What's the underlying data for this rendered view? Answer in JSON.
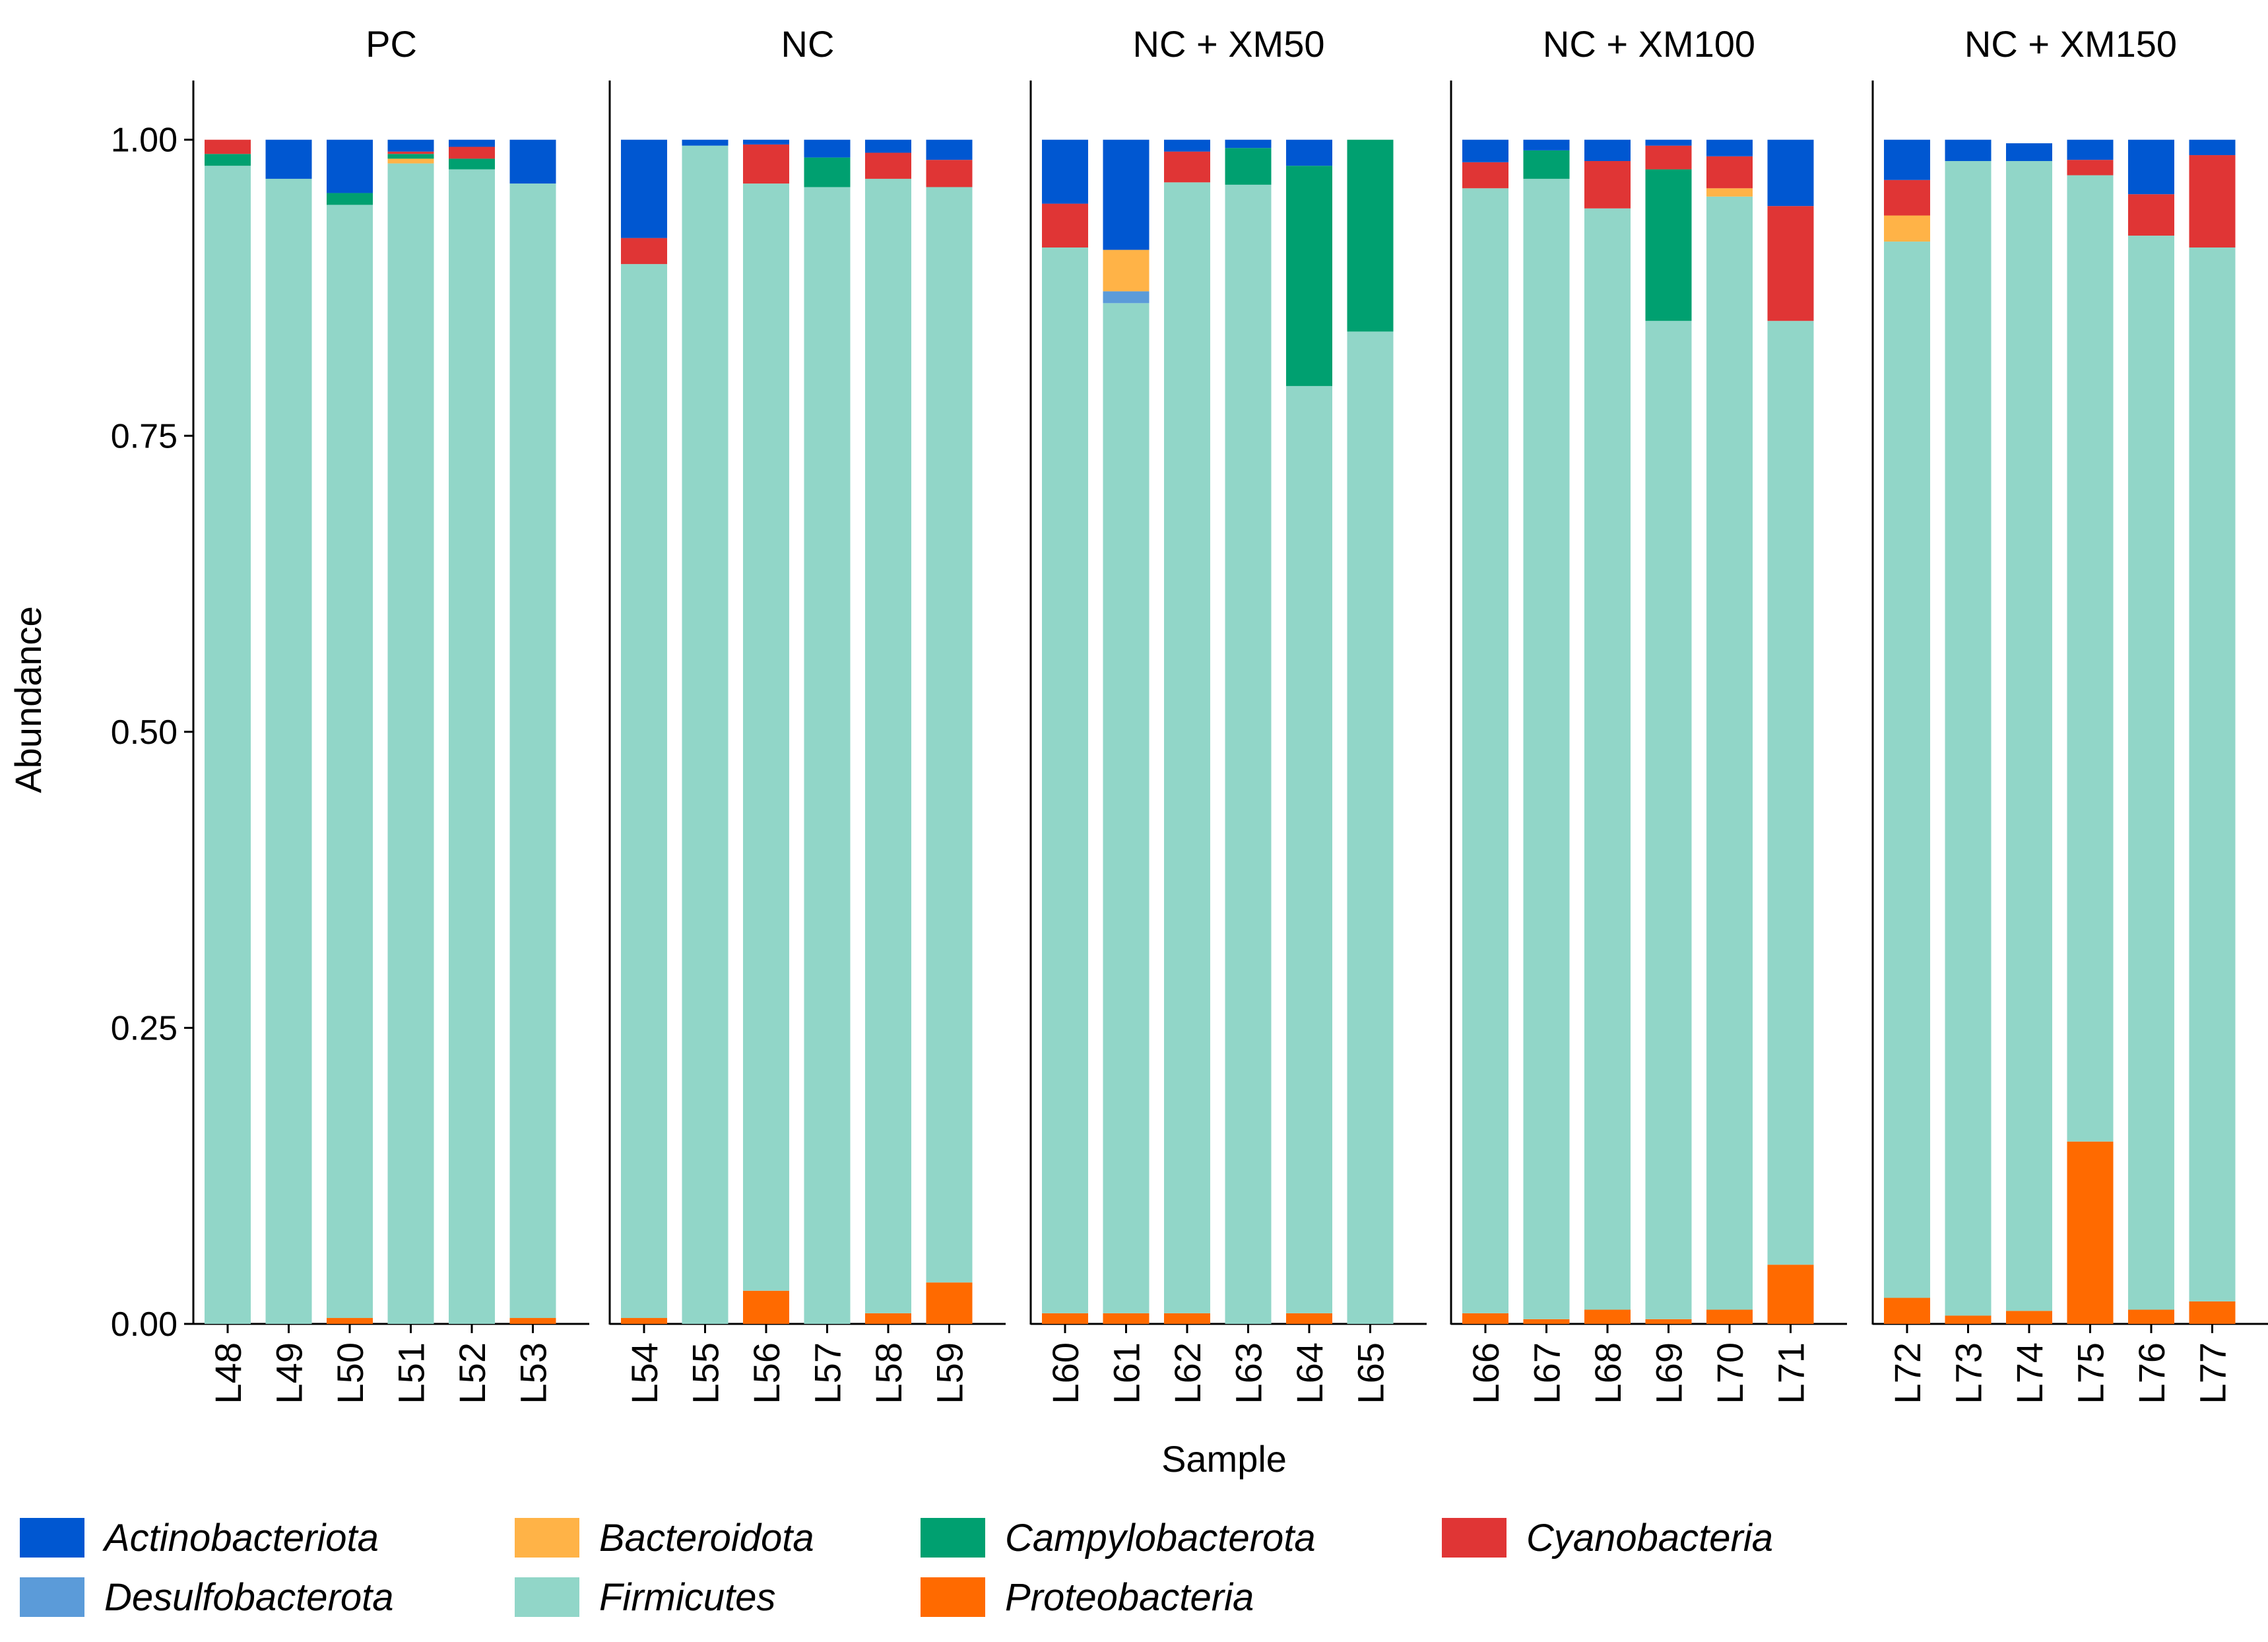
{
  "chart_data": {
    "type": "bar",
    "stacked": true,
    "ylabel": "Abundance",
    "xlabel": "Sample",
    "ylim": [
      0,
      1.05
    ],
    "yticks": [
      "0.00",
      "0.25",
      "0.50",
      "0.75",
      "1.00"
    ],
    "stack_order": [
      "Proteobacteria",
      "Firmicutes",
      "Desulfobacterota",
      "Bacteroidota",
      "Campylobacterota",
      "Cyanobacteria",
      "Actinobacteriota"
    ],
    "colors": {
      "Actinobacteriota": "#0057d1",
      "Desulfobacterota": "#5b9bd9",
      "Bacteroidota": "#ffb347",
      "Firmicutes": "#91d6c8",
      "Campylobacterota": "#00a070",
      "Proteobacteria": "#ff6a00",
      "Cyanobacteria": "#e03535"
    },
    "panels": [
      {
        "title": "PC",
        "samples": [
          {
            "label": "L48",
            "values": {
              "Proteobacteria": 0.0,
              "Firmicutes": 0.978,
              "Desulfobacterota": 0.0,
              "Bacteroidota": 0.0,
              "Campylobacterota": 0.01,
              "Cyanobacteria": 0.012,
              "Actinobacteriota": 0.0
            }
          },
          {
            "label": "L49",
            "values": {
              "Proteobacteria": 0.0,
              "Firmicutes": 0.967,
              "Desulfobacterota": 0.0,
              "Bacteroidota": 0.0,
              "Campylobacterota": 0.0,
              "Cyanobacteria": 0.0,
              "Actinobacteriota": 0.033
            }
          },
          {
            "label": "L50",
            "values": {
              "Proteobacteria": 0.005,
              "Firmicutes": 0.94,
              "Desulfobacterota": 0.0,
              "Bacteroidota": 0.0,
              "Campylobacterota": 0.01,
              "Cyanobacteria": 0.0,
              "Actinobacteriota": 0.045
            }
          },
          {
            "label": "L51",
            "values": {
              "Proteobacteria": 0.0,
              "Firmicutes": 0.98,
              "Desulfobacterota": 0.0,
              "Bacteroidota": 0.004,
              "Campylobacterota": 0.004,
              "Cyanobacteria": 0.002,
              "Actinobacteriota": 0.01
            }
          },
          {
            "label": "L52",
            "values": {
              "Proteobacteria": 0.0,
              "Firmicutes": 0.975,
              "Desulfobacterota": 0.0,
              "Bacteroidota": 0.0,
              "Campylobacterota": 0.009,
              "Cyanobacteria": 0.01,
              "Actinobacteriota": 0.006
            }
          },
          {
            "label": "L53",
            "values": {
              "Proteobacteria": 0.005,
              "Firmicutes": 0.958,
              "Desulfobacterota": 0.0,
              "Bacteroidota": 0.0,
              "Campylobacterota": 0.0,
              "Cyanobacteria": 0.0,
              "Actinobacteriota": 0.037
            }
          }
        ]
      },
      {
        "title": "NC",
        "samples": [
          {
            "label": "L54",
            "values": {
              "Proteobacteria": 0.005,
              "Firmicutes": 0.89,
              "Desulfobacterota": 0.0,
              "Bacteroidota": 0.0,
              "Campylobacterota": 0.0,
              "Cyanobacteria": 0.022,
              "Actinobacteriota": 0.083
            }
          },
          {
            "label": "L55",
            "values": {
              "Proteobacteria": 0.0,
              "Firmicutes": 0.995,
              "Desulfobacterota": 0.0,
              "Bacteroidota": 0.0,
              "Campylobacterota": 0.0,
              "Cyanobacteria": 0.0,
              "Actinobacteriota": 0.005
            }
          },
          {
            "label": "L56",
            "values": {
              "Proteobacteria": 0.028,
              "Firmicutes": 0.935,
              "Desulfobacterota": 0.0,
              "Bacteroidota": 0.0,
              "Campylobacterota": 0.0,
              "Cyanobacteria": 0.033,
              "Actinobacteriota": 0.004
            }
          },
          {
            "label": "L57",
            "values": {
              "Proteobacteria": 0.0,
              "Firmicutes": 0.96,
              "Desulfobacterota": 0.0,
              "Bacteroidota": 0.0,
              "Campylobacterota": 0.025,
              "Cyanobacteria": 0.0,
              "Actinobacteriota": 0.015
            }
          },
          {
            "label": "L58",
            "values": {
              "Proteobacteria": 0.009,
              "Firmicutes": 0.958,
              "Desulfobacterota": 0.0,
              "Bacteroidota": 0.0,
              "Campylobacterota": 0.0,
              "Cyanobacteria": 0.022,
              "Actinobacteriota": 0.011
            }
          },
          {
            "label": "L59",
            "values": {
              "Proteobacteria": 0.035,
              "Firmicutes": 0.925,
              "Desulfobacterota": 0.0,
              "Bacteroidota": 0.0,
              "Campylobacterota": 0.0,
              "Cyanobacteria": 0.023,
              "Actinobacteriota": 0.017
            }
          }
        ]
      },
      {
        "title": "NC + XM50",
        "samples": [
          {
            "label": "L60",
            "values": {
              "Proteobacteria": 0.009,
              "Firmicutes": 0.9,
              "Desulfobacterota": 0.0,
              "Bacteroidota": 0.0,
              "Campylobacterota": 0.0,
              "Cyanobacteria": 0.037,
              "Actinobacteriota": 0.054
            }
          },
          {
            "label": "L61",
            "values": {
              "Proteobacteria": 0.009,
              "Firmicutes": 0.853,
              "Desulfobacterota": 0.01,
              "Bacteroidota": 0.035,
              "Campylobacterota": 0.0,
              "Cyanobacteria": 0.0,
              "Actinobacteriota": 0.093
            }
          },
          {
            "label": "L62",
            "values": {
              "Proteobacteria": 0.009,
              "Firmicutes": 0.955,
              "Desulfobacterota": 0.0,
              "Bacteroidota": 0.0,
              "Campylobacterota": 0.0,
              "Cyanobacteria": 0.026,
              "Actinobacteriota": 0.01
            }
          },
          {
            "label": "L63",
            "values": {
              "Proteobacteria": 0.0,
              "Firmicutes": 0.962,
              "Desulfobacterota": 0.0,
              "Bacteroidota": 0.0,
              "Campylobacterota": 0.031,
              "Cyanobacteria": 0.0,
              "Actinobacteriota": 0.007
            }
          },
          {
            "label": "L64",
            "values": {
              "Proteobacteria": 0.009,
              "Firmicutes": 0.783,
              "Desulfobacterota": 0.0,
              "Bacteroidota": 0.0,
              "Campylobacterota": 0.186,
              "Cyanobacteria": 0.0,
              "Actinobacteriota": 0.022
            }
          },
          {
            "label": "L65",
            "values": {
              "Proteobacteria": 0.0,
              "Firmicutes": 0.838,
              "Desulfobacterota": 0.0,
              "Bacteroidota": 0.0,
              "Campylobacterota": 0.162,
              "Cyanobacteria": 0.0,
              "Actinobacteriota": 0.0
            }
          }
        ]
      },
      {
        "title": "NC + XM100",
        "samples": [
          {
            "label": "L66",
            "values": {
              "Proteobacteria": 0.009,
              "Firmicutes": 0.95,
              "Desulfobacterota": 0.0,
              "Bacteroidota": 0.0,
              "Campylobacterota": 0.0,
              "Cyanobacteria": 0.022,
              "Actinobacteriota": 0.019
            }
          },
          {
            "label": "L67",
            "values": {
              "Proteobacteria": 0.004,
              "Firmicutes": 0.963,
              "Desulfobacterota": 0.0,
              "Bacteroidota": 0.0,
              "Campylobacterota": 0.024,
              "Cyanobacteria": 0.0,
              "Actinobacteriota": 0.009
            }
          },
          {
            "label": "L68",
            "values": {
              "Proteobacteria": 0.012,
              "Firmicutes": 0.93,
              "Desulfobacterota": 0.0,
              "Bacteroidota": 0.0,
              "Campylobacterota": 0.0,
              "Cyanobacteria": 0.04,
              "Actinobacteriota": 0.018
            }
          },
          {
            "label": "L69",
            "values": {
              "Proteobacteria": 0.004,
              "Firmicutes": 0.843,
              "Desulfobacterota": 0.0,
              "Bacteroidota": 0.0,
              "Campylobacterota": 0.128,
              "Cyanobacteria": 0.02,
              "Actinobacteriota": 0.005
            }
          },
          {
            "label": "L70",
            "values": {
              "Proteobacteria": 0.012,
              "Firmicutes": 0.94,
              "Desulfobacterota": 0.0,
              "Bacteroidota": 0.007,
              "Campylobacterota": 0.0,
              "Cyanobacteria": 0.027,
              "Actinobacteriota": 0.014
            }
          },
          {
            "label": "L71",
            "values": {
              "Proteobacteria": 0.05,
              "Firmicutes": 0.797,
              "Desulfobacterota": 0.0,
              "Bacteroidota": 0.0,
              "Campylobacterota": 0.0,
              "Cyanobacteria": 0.097,
              "Actinobacteriota": 0.056
            }
          }
        ]
      },
      {
        "title": "NC + XM150",
        "samples": [
          {
            "label": "L72",
            "values": {
              "Proteobacteria": 0.022,
              "Firmicutes": 0.892,
              "Desulfobacterota": 0.0,
              "Bacteroidota": 0.022,
              "Campylobacterota": 0.0,
              "Cyanobacteria": 0.03,
              "Actinobacteriota": 0.034
            }
          },
          {
            "label": "L73",
            "values": {
              "Proteobacteria": 0.007,
              "Firmicutes": 0.975,
              "Desulfobacterota": 0.0,
              "Bacteroidota": 0.0,
              "Campylobacterota": 0.0,
              "Cyanobacteria": 0.0,
              "Actinobacteriota": 0.018
            }
          },
          {
            "label": "L74",
            "values": {
              "Proteobacteria": 0.011,
              "Firmicutes": 0.971,
              "Desulfobacterota": 0.0,
              "Bacteroidota": 0.0,
              "Campylobacterota": 0.0,
              "Cyanobacteria": 0.0,
              "Actinobacteriota": 0.015
            }
          },
          {
            "label": "L75",
            "values": {
              "Proteobacteria": 0.154,
              "Firmicutes": 0.816,
              "Desulfobacterota": 0.0,
              "Bacteroidota": 0.0,
              "Campylobacterota": 0.0,
              "Cyanobacteria": 0.013,
              "Actinobacteriota": 0.017
            }
          },
          {
            "label": "L76",
            "values": {
              "Proteobacteria": 0.012,
              "Firmicutes": 0.907,
              "Desulfobacterota": 0.0,
              "Bacteroidota": 0.0,
              "Campylobacterota": 0.0,
              "Cyanobacteria": 0.035,
              "Actinobacteriota": 0.046
            }
          },
          {
            "label": "L77",
            "values": {
              "Proteobacteria": 0.019,
              "Firmicutes": 0.89,
              "Desulfobacterota": 0.0,
              "Bacteroidota": 0.0,
              "Campylobacterota": 0.0,
              "Cyanobacteria": 0.078,
              "Actinobacteriota": 0.013
            }
          }
        ]
      }
    ],
    "legend": [
      {
        "name": "Actinobacteriota"
      },
      {
        "name": "Bacteroidota"
      },
      {
        "name": "Campylobacterota"
      },
      {
        "name": "Cyanobacteria"
      },
      {
        "name": "Desulfobacterota"
      },
      {
        "name": "Firmicutes"
      },
      {
        "name": "Proteobacteria"
      }
    ]
  }
}
